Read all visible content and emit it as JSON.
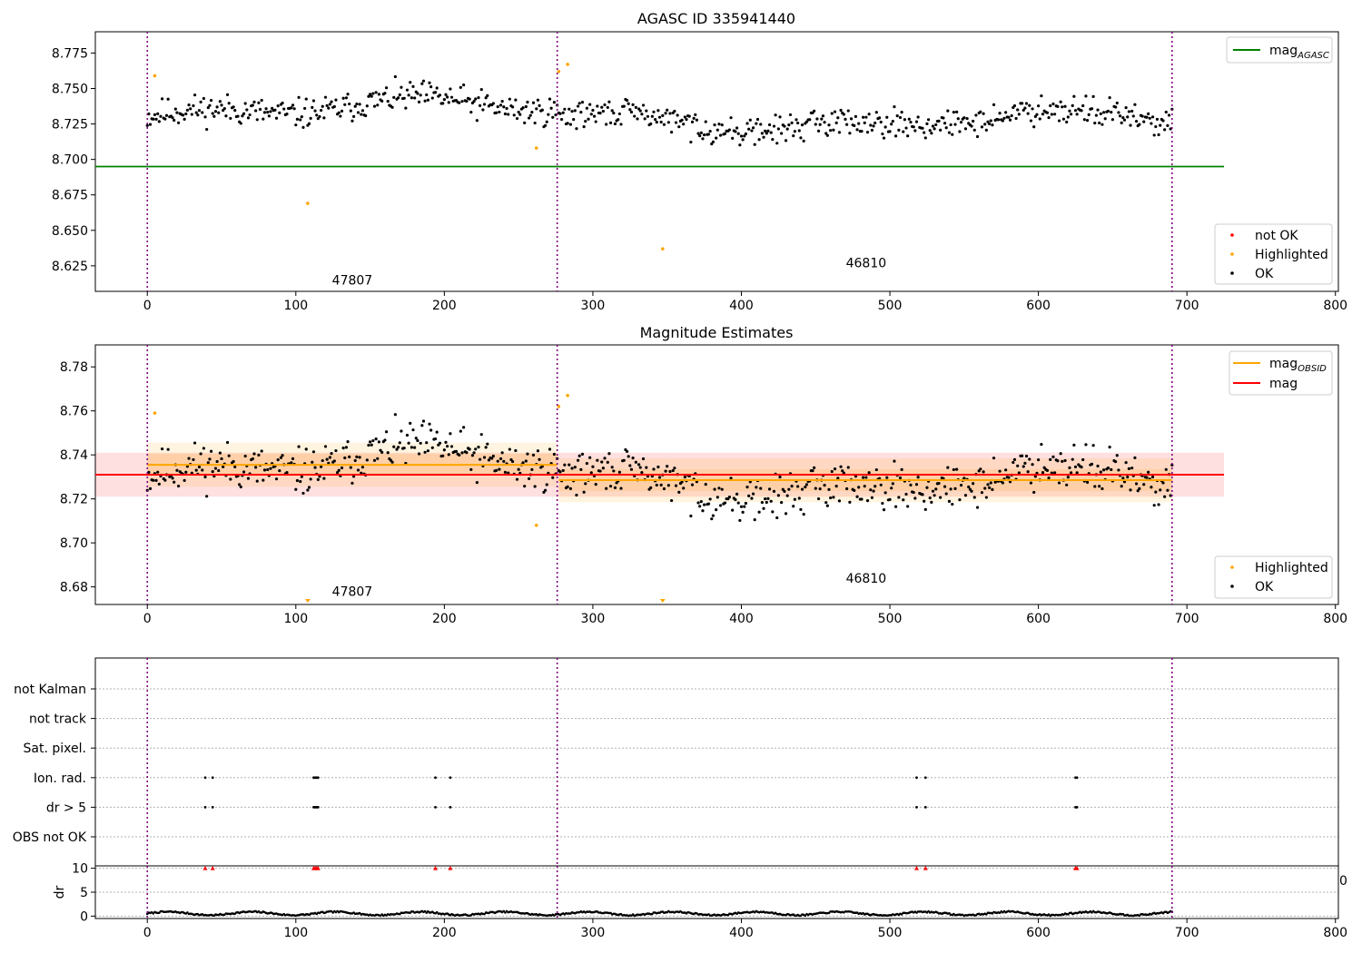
{
  "chart_data": [
    {
      "id": "agasc",
      "type": "scatter",
      "title": "AGASC ID 335941440",
      "xlim": [
        -35,
        802
      ],
      "ylim": [
        8.607,
        8.79
      ],
      "xticks": [
        0,
        100,
        200,
        300,
        400,
        500,
        600,
        700,
        800
      ],
      "yticks": [
        8.625,
        8.65,
        8.675,
        8.7,
        8.725,
        8.75,
        8.775
      ],
      "ytick_labels": [
        "8.625",
        "8.650",
        "8.675",
        "8.700",
        "8.725",
        "8.750",
        "8.775"
      ],
      "vlines": [
        0,
        276,
        690
      ],
      "hlines": [
        {
          "name": "mag_agasc",
          "y": 8.695,
          "x": [
            -35,
            725
          ],
          "color": "#008000"
        }
      ],
      "obsid_labels": [
        {
          "text": "47807",
          "x": 138,
          "y": 8.615
        },
        {
          "text": "46810",
          "x": 484,
          "y": 8.627
        }
      ],
      "segments": [
        {
          "x0": 0,
          "x1": 276,
          "center": 8.7355,
          "amp": 0.0095,
          "seed": 11
        },
        {
          "x0": 277,
          "x1": 690,
          "center": 8.7275,
          "amp": 0.0085,
          "seed": 29
        }
      ],
      "highlighted": [
        [
          5,
          8.759
        ],
        [
          108,
          8.669
        ],
        [
          262,
          8.708
        ],
        [
          277,
          8.762
        ],
        [
          283,
          8.767
        ],
        [
          347,
          8.637
        ]
      ],
      "legend_lines": [
        {
          "label": "mag",
          "sub": "AGASC",
          "color": "#008000"
        }
      ],
      "legend_points": [
        {
          "label": "not OK",
          "color": "#ff0000"
        },
        {
          "label": "Highlighted",
          "color": "#ffa500"
        },
        {
          "label": "OK",
          "color": "#000000"
        }
      ]
    },
    {
      "id": "estimates",
      "type": "scatter",
      "title": "Magnitude Estimates",
      "xlim": [
        -35,
        802
      ],
      "ylim": [
        8.672,
        8.79
      ],
      "xticks": [
        0,
        100,
        200,
        300,
        400,
        500,
        600,
        700,
        800
      ],
      "yticks": [
        8.68,
        8.7,
        8.72,
        8.74,
        8.76,
        8.78
      ],
      "ytick_labels": [
        "8.68",
        "8.70",
        "8.72",
        "8.74",
        "8.76",
        "8.78"
      ],
      "vlines": [
        0,
        276,
        690
      ],
      "bands": [
        {
          "x": [
            -35,
            725
          ],
          "y": [
            8.721,
            8.741
          ],
          "color": "#ff0000",
          "opacity": 0.12
        },
        {
          "x": [
            0,
            276
          ],
          "y": [
            8.7255,
            8.7455
          ],
          "color": "#ffa500",
          "opacity": 0.12
        },
        {
          "x": [
            0,
            276
          ],
          "y": [
            8.7305,
            8.7405
          ],
          "color": "#ffa500",
          "opacity": 0.14
        },
        {
          "x": [
            277,
            690
          ],
          "y": [
            8.7185,
            8.7385
          ],
          "color": "#ffa500",
          "opacity": 0.12
        },
        {
          "x": [
            277,
            690
          ],
          "y": [
            8.7235,
            8.7335
          ],
          "color": "#ffa500",
          "opacity": 0.14
        }
      ],
      "lines": [
        {
          "name": "mag",
          "x": [
            -35,
            725
          ],
          "y": 8.731,
          "color": "#ff0000"
        },
        {
          "name": "mag_obsid_1",
          "x": [
            0,
            276
          ],
          "y": 8.7355,
          "color": "#ffa500"
        },
        {
          "name": "mag_obsid_2",
          "x": [
            277,
            690
          ],
          "y": 8.7285,
          "color": "#ffa500"
        }
      ],
      "obsid_labels": [
        {
          "text": "47807",
          "x": 138,
          "y": 8.678
        },
        {
          "text": "46810",
          "x": 484,
          "y": 8.684
        }
      ],
      "segments": [
        {
          "x0": 0,
          "x1": 276,
          "center": 8.7355,
          "amp": 0.0095,
          "seed": 11
        },
        {
          "x0": 277,
          "x1": 690,
          "center": 8.7275,
          "amp": 0.0085,
          "seed": 29
        }
      ],
      "highlighted": [
        [
          5,
          8.759
        ],
        [
          262,
          8.708
        ],
        [
          277,
          8.762
        ],
        [
          283,
          8.767
        ]
      ],
      "offscale_markers": [
        108,
        347
      ],
      "legend_lines": [
        {
          "label": "mag",
          "sub": "OBSID",
          "color": "#ffa500"
        },
        {
          "label": "mag",
          "sub": "",
          "color": "#ff0000"
        }
      ],
      "legend_points": [
        {
          "label": "Highlighted",
          "color": "#ffa500"
        },
        {
          "label": "OK",
          "color": "#000000"
        }
      ]
    },
    {
      "id": "flags",
      "type": "scatter",
      "xlim": [
        -35,
        802
      ],
      "categories": [
        "not Kalman",
        "not track",
        "Sat. pixel.",
        "Ion. rad.",
        "dr > 5",
        "OBS not OK"
      ],
      "vlines": [
        0,
        276,
        690
      ],
      "flag_points": {
        "Ion. rad.": [
          39,
          44,
          112,
          113,
          114,
          115,
          194,
          204,
          518,
          524,
          625,
          626
        ],
        "dr > 5": [
          39,
          44,
          112,
          113,
          114,
          115,
          194,
          204,
          518,
          524,
          625,
          626
        ]
      }
    },
    {
      "id": "dr",
      "type": "scatter",
      "ylabel": "dr",
      "xlim": [
        -35,
        802
      ],
      "ylim": [
        -0.5,
        10.5
      ],
      "xticks": [
        0,
        100,
        200,
        300,
        400,
        500,
        600,
        700,
        800
      ],
      "yticks": [
        0,
        5,
        10
      ],
      "ytick_labels": [
        "0",
        "5",
        "10"
      ],
      "vlines": [
        0,
        276,
        690
      ],
      "clipped_markers": [
        39,
        44,
        112,
        113,
        114,
        115,
        194,
        204,
        518,
        524,
        625,
        626
      ],
      "n_points": 690,
      "edge_label": "0"
    }
  ]
}
